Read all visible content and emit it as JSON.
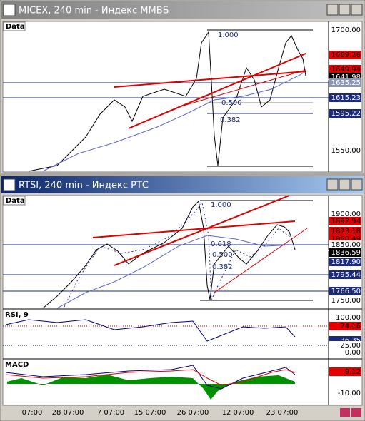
{
  "windows": [
    {
      "title": "MICEX, 240 min - Индекс ММВБ",
      "data_label": "Data",
      "price_labels": [
        {
          "text": "1700.00",
          "color": "#ffffff"
        },
        {
          "text": "1669.26",
          "color": "#e00000"
        },
        {
          "text": "1649.94",
          "color": "#e00000"
        },
        {
          "text": "▲ 1641.98",
          "color": "#000000"
        },
        {
          "text": "1635.25",
          "color": "#8a96b4"
        },
        {
          "text": "1615.23",
          "color": "#1c2a7a"
        },
        {
          "text": "1595.22",
          "color": "#1c2a7a"
        },
        {
          "text": "1550.00",
          "color": "#ffffff"
        }
      ],
      "fib_labels": [
        "1.000",
        "0.500",
        "0.382"
      ]
    },
    {
      "title": "RTSI, 240 min - Индекс РТС",
      "data_label": "Data",
      "price_labels": [
        {
          "text": "1900.00",
          "color": "#ffffff"
        },
        {
          "text": "1892.94",
          "color": "#e00000"
        },
        {
          "text": "1873.18",
          "color": "#e00000"
        },
        {
          "text": "1860.49",
          "color": "#e00000"
        },
        {
          "text": "1850.00",
          "color": "#ffffff"
        },
        {
          "text": "▼ 1836.59",
          "color": "#000000"
        },
        {
          "text": "1817.90",
          "color": "#1c2a7a"
        },
        {
          "text": "1795.44",
          "color": "#1c2a7a"
        },
        {
          "text": "1766.50",
          "color": "#1c2a7a"
        },
        {
          "text": "1750.00",
          "color": "#ffffff"
        }
      ],
      "fib_labels": [
        "1.000",
        "0.618",
        "0.500",
        "0.382"
      ],
      "indicators": [
        {
          "name": "RSI, 9",
          "labels": [
            {
              "text": "100.00",
              "color": "#ffffff"
            },
            {
              "text": "74.16",
              "color": "#e00000"
            },
            {
              "text": "36.35",
              "color": "#1c2a7a"
            },
            {
              "text": "25.00",
              "color": "#ffffff"
            },
            {
              "text": "0.00",
              "color": "#ffffff"
            }
          ]
        },
        {
          "name": "MACD",
          "labels": [
            {
              "text": "9.12",
              "color": "#e00000"
            },
            {
              "text": "-10.00",
              "color": "#ffffff"
            }
          ]
        }
      ],
      "time_axis": [
        "07:00",
        "28 07:00",
        "7 07:00",
        "15 07:00",
        "26 07:00",
        "12 07:00",
        "23 07:00"
      ]
    }
  ]
}
